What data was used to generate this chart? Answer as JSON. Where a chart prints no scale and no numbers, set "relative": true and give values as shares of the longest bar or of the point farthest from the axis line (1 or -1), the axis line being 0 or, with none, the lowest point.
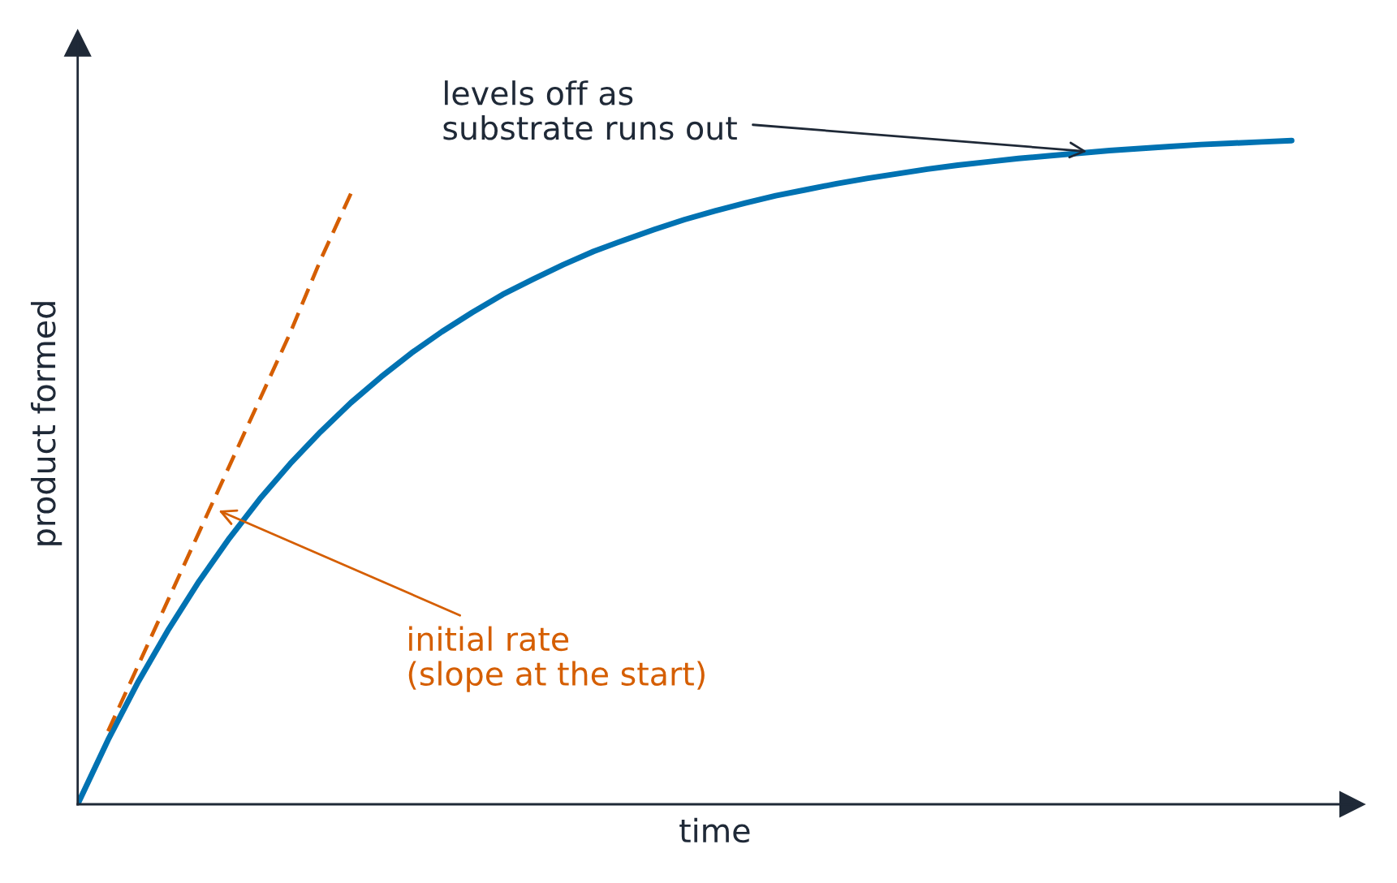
{
  "chart_data": {
    "type": "line",
    "xlabel": "time",
    "ylabel": "product formed",
    "relative": true,
    "tick_labels": false,
    "line_style": "solid",
    "categories": [
      null,
      null,
      null,
      null,
      null,
      null,
      null,
      null,
      null,
      null,
      null,
      null,
      null,
      null,
      null,
      null,
      null,
      null,
      null,
      null,
      null,
      null,
      null,
      null,
      null,
      null,
      null,
      null,
      null,
      null,
      null,
      null,
      null,
      null,
      null,
      null,
      null,
      null,
      null,
      null,
      null,
      null,
      null
    ],
    "series": [
      {
        "color": "#0072b2",
        "values": [
          0,
          0.097,
          0.185,
          0.264,
          0.336,
          0.401,
          0.46,
          0.513,
          0.561,
          0.605,
          0.644,
          0.68,
          0.712,
          0.741,
          0.768,
          0.791,
          0.813,
          0.833,
          0.85,
          0.866,
          0.881,
          0.894,
          0.906,
          0.917,
          0.926,
          0.935,
          0.943,
          0.95,
          0.957,
          0.963,
          0.968,
          0.973,
          0.977,
          0.981,
          0.985,
          0.988,
          0.991,
          0.994,
          0.996,
          0.998,
          1.0,
          null,
          null
        ]
      },
      {
        "color": "#d55e00",
        "line_style": "dashed",
        "values": [
          null,
          0.11,
          0.21,
          0.31,
          0.41,
          0.51,
          0.61,
          0.71,
          0.82,
          0.92,
          null,
          null,
          null,
          null,
          null,
          null,
          null,
          null,
          null,
          null,
          null,
          null,
          null,
          null,
          null,
          null,
          null,
          null,
          null,
          null,
          null,
          null,
          null,
          null,
          null,
          null,
          null,
          null,
          null,
          null,
          null,
          null,
          null
        ]
      }
    ],
    "annotations": [
      "levels off as\nsubstrate runs out",
      "initial rate\n(slope at the start)"
    ]
  }
}
